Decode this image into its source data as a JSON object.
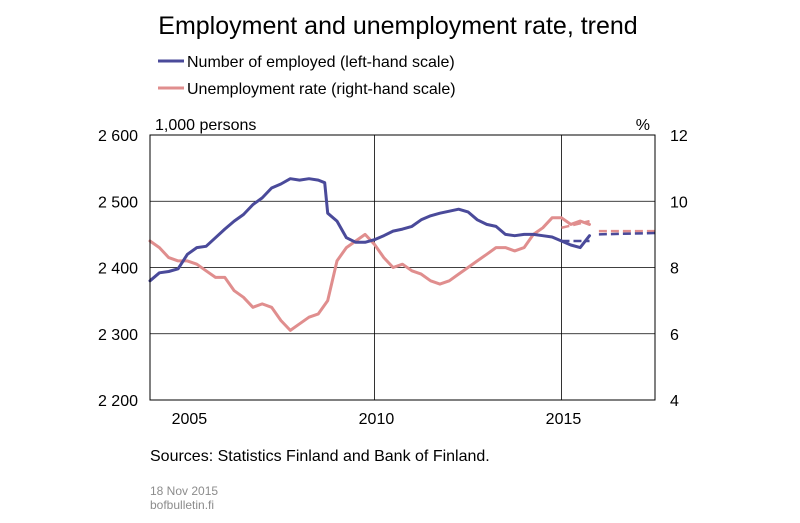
{
  "chart_data": {
    "type": "line",
    "title": "Employment and unemployment rate, trend",
    "left_axis_unit": "1,000 persons",
    "right_axis_unit": "%",
    "xlim": [
      2004.0,
      2017.5
    ],
    "x_ticks": [
      2005,
      2010,
      2015
    ],
    "x_tick_labels": [
      "2005",
      "2010",
      "2015"
    ],
    "x_gridlines": [
      2010,
      2015
    ],
    "left_ylim": [
      2200,
      2600
    ],
    "left_y_ticks": [
      2200,
      2300,
      2400,
      2500,
      2600
    ],
    "left_y_tick_labels": [
      "2 200",
      "2 300",
      "2 400",
      "2 500",
      "2 600"
    ],
    "right_ylim": [
      4,
      12
    ],
    "right_y_ticks": [
      4,
      6,
      8,
      10,
      12
    ],
    "right_y_tick_labels": [
      "4",
      "6",
      "8",
      "10",
      "12"
    ],
    "grid": "horizontal at every tick, vertical at 2010 and 2015",
    "legend_placement": "top-left, above plot",
    "series": [
      {
        "name": "Number of employed (left-hand scale)",
        "axis": "left",
        "color": "#4a4a9a",
        "x": [
          2004.0,
          2004.25,
          2004.5,
          2004.75,
          2005.0,
          2005.25,
          2005.5,
          2005.75,
          2006.0,
          2006.25,
          2006.5,
          2006.75,
          2007.0,
          2007.25,
          2007.5,
          2007.75,
          2008.0,
          2008.25,
          2008.5,
          2008.67,
          2008.75,
          2009.0,
          2009.25,
          2009.5,
          2009.75,
          2010.0,
          2010.25,
          2010.5,
          2010.75,
          2011.0,
          2011.25,
          2011.5,
          2011.75,
          2012.0,
          2012.25,
          2012.5,
          2012.75,
          2013.0,
          2013.25,
          2013.5,
          2013.75,
          2014.0,
          2014.25,
          2014.5,
          2014.75,
          2015.0,
          2015.25,
          2015.5,
          2015.75
        ],
        "values": [
          2380,
          2392,
          2394,
          2398,
          2420,
          2430,
          2432,
          2445,
          2458,
          2470,
          2480,
          2495,
          2505,
          2520,
          2526,
          2534,
          2532,
          2534,
          2532,
          2528,
          2482,
          2470,
          2445,
          2438,
          2438,
          2442,
          2448,
          2455,
          2458,
          2462,
          2472,
          2478,
          2482,
          2485,
          2488,
          2484,
          2472,
          2465,
          2462,
          2450,
          2448,
          2450,
          2450,
          2448,
          2446,
          2440,
          2434,
          2430,
          2448
        ],
        "forecast_x": [
          2015.0,
          2015.75,
          2016.0,
          2017.5
        ],
        "forecast_values": [
          2440,
          2440,
          2450,
          2452
        ]
      },
      {
        "name": "Unemployment rate (right-hand scale)",
        "axis": "right",
        "color": "#e08e8e",
        "x": [
          2004.0,
          2004.25,
          2004.5,
          2004.75,
          2005.0,
          2005.25,
          2005.5,
          2005.75,
          2006.0,
          2006.25,
          2006.5,
          2006.75,
          2007.0,
          2007.25,
          2007.5,
          2007.75,
          2008.0,
          2008.25,
          2008.5,
          2008.75,
          2009.0,
          2009.25,
          2009.5,
          2009.75,
          2010.0,
          2010.25,
          2010.5,
          2010.75,
          2011.0,
          2011.25,
          2011.5,
          2011.75,
          2012.0,
          2012.25,
          2012.5,
          2012.75,
          2013.0,
          2013.25,
          2013.5,
          2013.75,
          2014.0,
          2014.25,
          2014.5,
          2014.75,
          2015.0,
          2015.25,
          2015.5,
          2015.75
        ],
        "values": [
          8.8,
          8.6,
          8.3,
          8.2,
          8.2,
          8.1,
          7.9,
          7.7,
          7.7,
          7.3,
          7.1,
          6.8,
          6.9,
          6.8,
          6.4,
          6.1,
          6.3,
          6.5,
          6.6,
          7.0,
          8.2,
          8.6,
          8.8,
          9.0,
          8.7,
          8.3,
          8.0,
          8.1,
          7.9,
          7.8,
          7.6,
          7.5,
          7.6,
          7.8,
          8.0,
          8.2,
          8.4,
          8.6,
          8.6,
          8.5,
          8.6,
          9.0,
          9.2,
          9.5,
          9.5,
          9.3,
          9.4,
          9.3
        ],
        "forecast_x": [
          2015.0,
          2015.75,
          2016.0,
          2017.5
        ],
        "forecast_values": [
          9.2,
          9.4,
          9.1,
          9.1
        ]
      }
    ],
    "source": "Sources: Statistics Finland and Bank of Finland.",
    "footer_date": "18 Nov 2015",
    "footer_site": "bofbulletin.fi"
  }
}
